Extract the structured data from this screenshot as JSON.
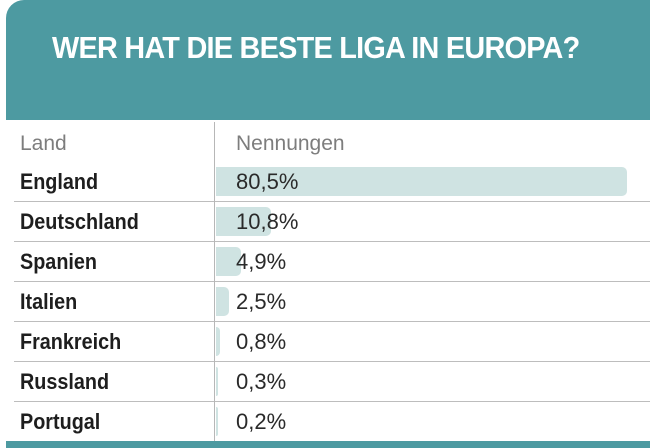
{
  "title": "WER HAT DIE BESTE LIGA IN EUROPA?",
  "columns": {
    "land": "Land",
    "nennungen": "Nennungen"
  },
  "colors": {
    "header": "#4d9aa1",
    "bar": "#cfe3e2"
  },
  "chart_data": {
    "type": "bar",
    "title": "WER HAT DIE BESTE LIGA IN EUROPA?",
    "xlabel": "Land",
    "ylabel": "Nennungen",
    "categories": [
      "England",
      "Deutschland",
      "Spanien",
      "Italien",
      "Frankreich",
      "Russland",
      "Portugal"
    ],
    "values": [
      80.5,
      10.8,
      4.9,
      2.5,
      0.8,
      0.3,
      0.2
    ],
    "value_labels": [
      "80,5%",
      "10,8%",
      "4,9%",
      "2,5%",
      "0,8%",
      "0,3%",
      "0,2%"
    ],
    "ylim": [
      0,
      100
    ]
  }
}
